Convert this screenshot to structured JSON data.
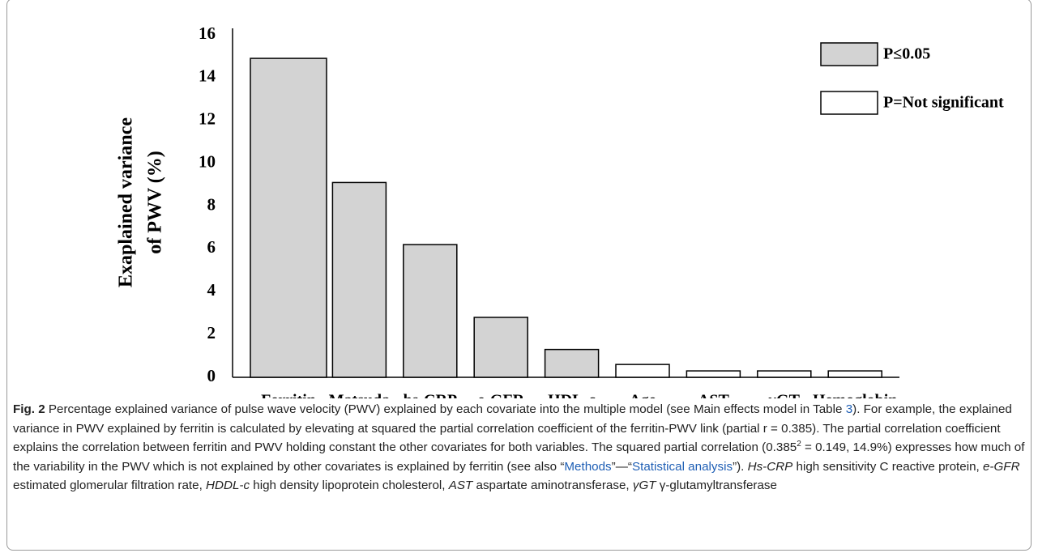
{
  "chart_data": {
    "type": "bar",
    "ylabel": [
      "Exaplained variance",
      "of PWV (%)"
    ],
    "categories": [
      "Ferritin",
      "Matsuda",
      "hs-CRP",
      "e-GFR",
      "HDL-c",
      "Age",
      "AST",
      "γGT",
      "Hemoglobin"
    ],
    "values": [
      14.9,
      9.1,
      6.2,
      2.8,
      1.3,
      0.6,
      0.3,
      0.3,
      0.3
    ],
    "colors": [
      "#d3d3d3",
      "#d3d3d3",
      "#d3d3d3",
      "#d3d3d3",
      "#d3d3d3",
      "#ffffff",
      "#ffffff",
      "#ffffff",
      "#ffffff"
    ],
    "ylim": [
      0,
      16
    ],
    "yticks": [
      0,
      2,
      4,
      6,
      8,
      10,
      12,
      14,
      16
    ],
    "grid": false,
    "legend": [
      {
        "label": "P≤0.05",
        "color": "#d3d3d3"
      },
      {
        "label": "P=Not significant",
        "color": "#ffffff"
      }
    ],
    "legend_position": "upper right"
  },
  "caption": {
    "label": "Fig. 2",
    "segments": [
      " Percentage explained variance of pulse wave velocity (PWV) explained by each covariate into the multiple model (see Main effects model in Table ",
      "3",
      "). For example, the explained variance in PWV explained by ferritin is calculated by elevating at squared the partial correlation coefficient of the ferritin-PWV link (partial r = 0.385). The partial correlation coefficient explains the correlation between ferritin and PWV holding constant the other covariates for both variables. The squared partial correlation (0.385",
      "2",
      " = 0.149, 14.9%) expresses how much of the variability in the PWV which is not explained by other covariates is explained by ferritin (see also “",
      "Methods",
      "”—“",
      "Statistical analysis",
      "”). ",
      "Hs-CRP",
      " high sensitivity C reactive protein, ",
      "e-GFR",
      " estimated glomerular filtration rate, ",
      "HDDL-c",
      " high density lipoprotein cholesterol, ",
      "AST",
      " aspartate aminotransferase, ",
      "γGT",
      " γ-glutamyltransferase"
    ]
  }
}
